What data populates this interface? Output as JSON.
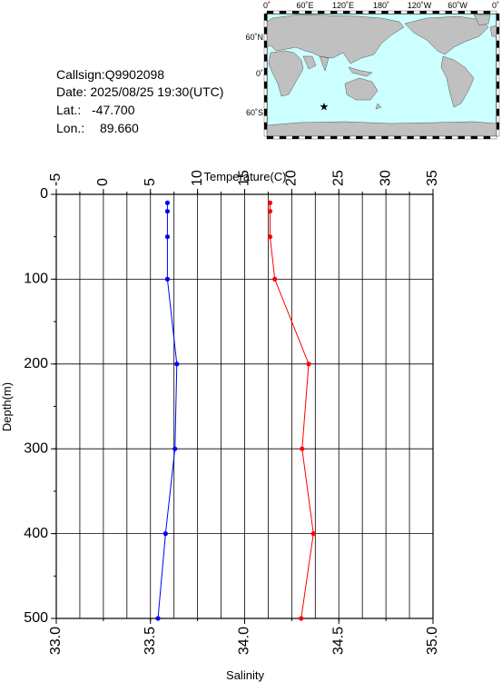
{
  "station": {
    "callsign": "Callsign:Q9902098",
    "date": "Date:  2025/08/25 19:30(UTC)",
    "lat_label": "Lat.:",
    "lat_value": "-47.700",
    "lon_label": "Lon.:",
    "lon_value": "89.660"
  },
  "map": {
    "lon_labels": [
      "0˚",
      "60˚E",
      "120˚E",
      "180˚",
      "120˚W",
      "60˚W",
      "0˚"
    ],
    "lat_labels": [
      "60˚N",
      "0˚",
      "60˚S"
    ],
    "marker": {
      "lon": 89.66,
      "lat": -47.7,
      "color": "#ff0000"
    },
    "land_color": "#c0c0c0",
    "ocean_color": "#ccffff"
  },
  "chart_data": {
    "type": "line",
    "ylabel": "Depth(m)",
    "y_ticks": [
      "0",
      "100",
      "200",
      "300",
      "400",
      "500"
    ],
    "ylim": [
      0,
      500
    ],
    "y_inverted": true,
    "grid": true,
    "x_top": {
      "label": "Temperature(C)",
      "ticks": [
        "-5",
        "0",
        "5",
        "10",
        "15",
        "20",
        "25",
        "30",
        "35"
      ],
      "lim": [
        -5,
        35
      ]
    },
    "x_bottom": {
      "label": "Salinity",
      "ticks": [
        "33.0",
        "33.5",
        "34.0",
        "34.5",
        "35.0"
      ],
      "lim": [
        33.0,
        35.0
      ]
    },
    "series": [
      {
        "quantity": "temperature",
        "axis": "top",
        "color": "#ff0000",
        "depth": [
          10,
          20,
          50,
          100,
          200,
          300,
          400,
          500
        ],
        "values": [
          17.7,
          17.7,
          17.7,
          18.2,
          21.8,
          21.1,
          22.3,
          21.0
        ]
      },
      {
        "quantity": "salinity",
        "axis": "bottom",
        "color": "#0000ff",
        "depth": [
          10,
          20,
          50,
          100,
          200,
          300,
          400,
          500
        ],
        "values": [
          33.59,
          33.59,
          33.59,
          33.59,
          33.64,
          33.63,
          33.58,
          33.54
        ]
      }
    ]
  }
}
